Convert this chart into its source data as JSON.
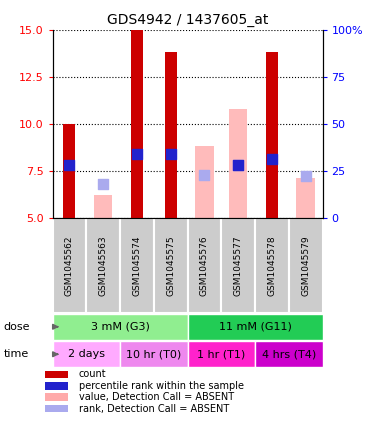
{
  "title": "GDS4942 / 1437605_at",
  "samples": [
    "GSM1045562",
    "GSM1045563",
    "GSM1045574",
    "GSM1045575",
    "GSM1045576",
    "GSM1045577",
    "GSM1045578",
    "GSM1045579"
  ],
  "red_bars": [
    10.0,
    null,
    15.0,
    13.8,
    null,
    null,
    13.8,
    null
  ],
  "pink_bars": [
    null,
    6.2,
    null,
    null,
    8.8,
    10.8,
    null,
    7.1
  ],
  "blue_squares": [
    7.8,
    null,
    8.4,
    8.4,
    null,
    7.8,
    8.1,
    null
  ],
  "lightblue_squares": [
    null,
    6.8,
    null,
    null,
    7.3,
    7.8,
    null,
    7.2
  ],
  "ylim": [
    5,
    15
  ],
  "yticks_left": [
    5,
    7.5,
    10,
    12.5,
    15
  ],
  "yticks_right": [
    0,
    25,
    50,
    75,
    100
  ],
  "dose_groups": [
    {
      "label": "3 mM (G3)",
      "start": 0,
      "end": 4,
      "color": "#90ee90"
    },
    {
      "label": "11 mM (G11)",
      "start": 4,
      "end": 8,
      "color": "#22cc55"
    }
  ],
  "time_groups": [
    {
      "label": "2 days",
      "start": 0,
      "end": 2,
      "color": "#ffaaff"
    },
    {
      "label": "10 hr (T0)",
      "start": 2,
      "end": 4,
      "color": "#ee88ee"
    },
    {
      "label": "1 hr (T1)",
      "start": 4,
      "end": 6,
      "color": "#ff22cc"
    },
    {
      "label": "4 hrs (T4)",
      "start": 6,
      "end": 8,
      "color": "#cc00cc"
    }
  ],
  "legend_items": [
    {
      "color": "#cc0000",
      "label": "count"
    },
    {
      "color": "#2222cc",
      "label": "percentile rank within the sample"
    },
    {
      "color": "#ffaaaa",
      "label": "value, Detection Call = ABSENT"
    },
    {
      "color": "#aaaaee",
      "label": "rank, Detection Call = ABSENT"
    }
  ]
}
